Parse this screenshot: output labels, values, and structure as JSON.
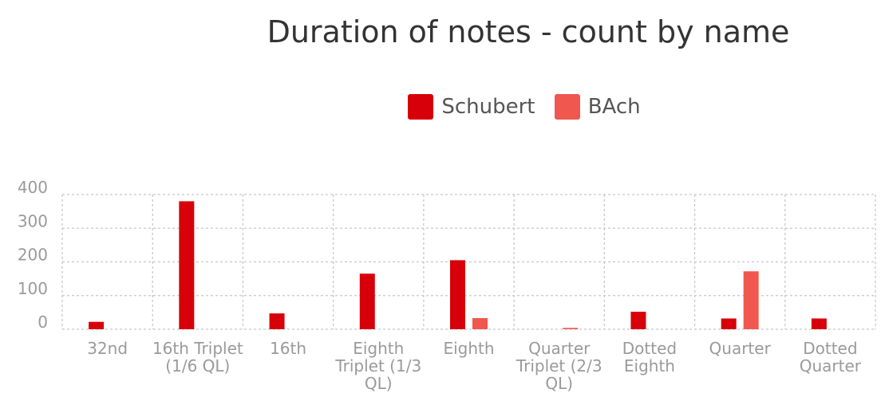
{
  "chart_data": {
    "type": "bar",
    "title": "Duration of notes - count by name",
    "categories": [
      "32nd",
      "16th Triplet (1/6 QL)",
      "16th",
      "Eighth Triplet (1/3 QL)",
      "Eighth",
      "Quarter Triplet (2/3 QL)",
      "Dotted Eighth",
      "Quarter",
      "Dotted Quarter"
    ],
    "category_lines": [
      [
        "32nd"
      ],
      [
        "16th Triplet",
        "(1/6 QL)"
      ],
      [
        "16th"
      ],
      [
        "Eighth",
        "Triplet (1/3",
        "QL)"
      ],
      [
        "Eighth"
      ],
      [
        "Quarter",
        "Triplet (2/3",
        "QL)"
      ],
      [
        "Dotted",
        "Eighth"
      ],
      [
        "Quarter"
      ],
      [
        "Dotted",
        "Quarter"
      ]
    ],
    "series": [
      {
        "name": "Schubert",
        "color": "#d7000a",
        "values": [
          22,
          380,
          47,
          165,
          205,
          0,
          52,
          32,
          32
        ]
      },
      {
        "name": "BAch",
        "color": "#f0574f",
        "values": [
          0,
          0,
          0,
          0,
          33,
          4,
          0,
          172,
          0
        ]
      }
    ],
    "ylim": [
      0,
      400
    ],
    "yticks": [
      0,
      100,
      200,
      300,
      400
    ],
    "ytick_labels": [
      "0",
      "100",
      "200",
      "300",
      "400"
    ],
    "grid": true,
    "legend_position": "top"
  }
}
